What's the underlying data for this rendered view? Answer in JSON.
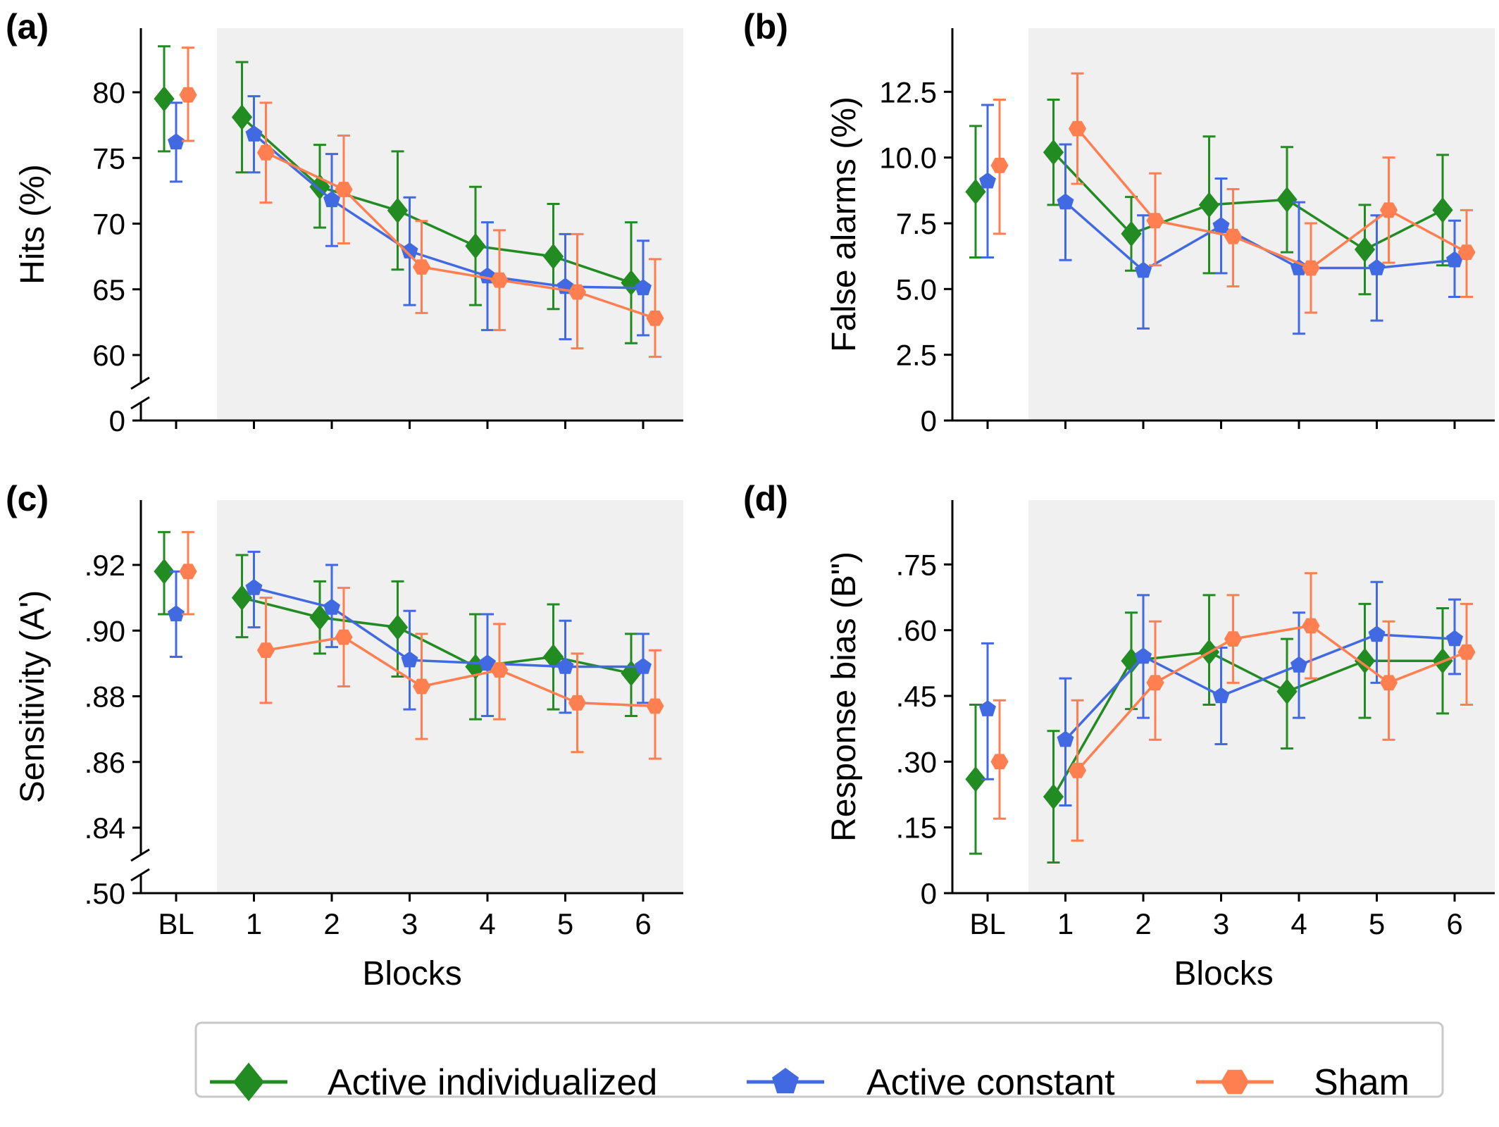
{
  "colors": {
    "active_individualized": "#228b22",
    "active_constant": "#4169e1",
    "sham": "#ff7f50",
    "shade": "#f0f0f0"
  },
  "legend": {
    "items": [
      {
        "label": "Active individualized",
        "marker": "diamond",
        "color": "#228b22"
      },
      {
        "label": "Active constant",
        "marker": "pentagon",
        "color": "#4169e1"
      },
      {
        "label": "Sham",
        "marker": "hexagon",
        "color": "#ff7f50"
      }
    ]
  },
  "chart_data": [
    {
      "type": "line",
      "panel": "(a)",
      "ylabel": "Hits (%)",
      "xlabel": "",
      "categories": [
        "BL",
        "1",
        "2",
        "3",
        "4",
        "5",
        "6"
      ],
      "yticks": [
        "0",
        "60",
        "65",
        "70",
        "75",
        "80"
      ],
      "shaded_region": "blocks 1-6",
      "series": [
        {
          "name": "Active individualized",
          "values": [
            79.5,
            78.1,
            72.8,
            71.0,
            68.3,
            67.5,
            65.5
          ],
          "err_low": [
            75.5,
            73.9,
            69.7,
            66.5,
            63.8,
            63.5,
            60.9
          ],
          "err_high": [
            83.5,
            82.3,
            76.0,
            75.5,
            72.8,
            71.5,
            70.1
          ]
        },
        {
          "name": "Active constant",
          "values": [
            76.2,
            76.8,
            71.8,
            67.9,
            66.0,
            65.2,
            65.1
          ],
          "err_low": [
            73.2,
            73.9,
            68.3,
            63.8,
            61.9,
            61.2,
            61.5
          ],
          "err_high": [
            79.2,
            79.7,
            75.3,
            72.0,
            70.1,
            69.2,
            68.7
          ]
        },
        {
          "name": "Sham",
          "values": [
            79.8,
            75.4,
            72.6,
            66.7,
            65.7,
            64.8,
            62.8
          ],
          "err_low": [
            76.3,
            71.6,
            68.5,
            63.2,
            61.9,
            60.5,
            58.3
          ],
          "err_high": [
            83.4,
            79.2,
            76.7,
            70.2,
            69.5,
            69.2,
            67.3
          ]
        }
      ]
    },
    {
      "type": "line",
      "panel": "(b)",
      "ylabel": "False alarms (%)",
      "xlabel": "",
      "categories": [
        "BL",
        "1",
        "2",
        "3",
        "4",
        "5",
        "6"
      ],
      "yticks": [
        "0",
        "2.5",
        "5.0",
        "7.5",
        "10.0",
        "12.5"
      ],
      "shaded_region": "blocks 1-6",
      "series": [
        {
          "name": "Active individualized",
          "values": [
            8.7,
            10.2,
            7.1,
            8.2,
            8.4,
            6.5,
            8.0
          ],
          "err_low": [
            6.2,
            8.2,
            5.7,
            5.6,
            6.4,
            4.8,
            5.9
          ],
          "err_high": [
            11.2,
            12.2,
            8.5,
            10.8,
            10.4,
            8.2,
            10.1
          ]
        },
        {
          "name": "Active constant",
          "values": [
            9.1,
            8.3,
            5.7,
            7.4,
            5.8,
            5.8,
            6.1
          ],
          "err_low": [
            6.2,
            6.1,
            3.5,
            5.6,
            3.3,
            3.8,
            4.7
          ],
          "err_high": [
            12.0,
            10.5,
            7.8,
            9.2,
            8.3,
            7.8,
            7.6
          ]
        },
        {
          "name": "Sham",
          "values": [
            9.7,
            11.1,
            7.6,
            7.0,
            5.8,
            8.0,
            6.4
          ],
          "err_low": [
            7.1,
            9.0,
            5.9,
            5.1,
            4.1,
            6.0,
            4.7
          ],
          "err_high": [
            12.2,
            13.2,
            9.4,
            8.8,
            7.5,
            10.0,
            8.0
          ]
        }
      ]
    },
    {
      "type": "line",
      "panel": "(c)",
      "ylabel": "Sensitivity (A')",
      "xlabel": "Blocks",
      "categories": [
        "BL",
        "1",
        "2",
        "3",
        "4",
        "5",
        "6"
      ],
      "yticks": [
        ".50",
        ".84",
        ".86",
        ".88",
        ".90",
        ".92"
      ],
      "shaded_region": "blocks 1-6",
      "series": [
        {
          "name": "Active individualized",
          "values": [
            0.918,
            0.91,
            0.904,
            0.901,
            0.889,
            0.892,
            0.887
          ],
          "err_low": [
            0.905,
            0.898,
            0.893,
            0.886,
            0.873,
            0.876,
            0.874
          ],
          "err_high": [
            0.93,
            0.923,
            0.915,
            0.915,
            0.905,
            0.908,
            0.899
          ]
        },
        {
          "name": "Active constant",
          "values": [
            0.905,
            0.913,
            0.907,
            0.891,
            0.89,
            0.889,
            0.889
          ],
          "err_low": [
            0.892,
            0.901,
            0.895,
            0.876,
            0.874,
            0.875,
            0.878
          ],
          "err_high": [
            0.918,
            0.924,
            0.92,
            0.906,
            0.905,
            0.903,
            0.899
          ]
        },
        {
          "name": "Sham",
          "values": [
            0.918,
            0.894,
            0.898,
            0.883,
            0.888,
            0.878,
            0.877
          ],
          "err_low": [
            0.905,
            0.878,
            0.883,
            0.867,
            0.873,
            0.863,
            0.861
          ],
          "err_high": [
            0.93,
            0.91,
            0.913,
            0.899,
            0.902,
            0.893,
            0.894
          ]
        }
      ]
    },
    {
      "type": "line",
      "panel": "(d)",
      "ylabel": "Response bias (B\")",
      "xlabel": "Blocks",
      "categories": [
        "BL",
        "1",
        "2",
        "3",
        "4",
        "5",
        "6"
      ],
      "yticks": [
        "0",
        ".15",
        ".30",
        ".45",
        ".60",
        ".75"
      ],
      "shaded_region": "blocks 1-6",
      "series": [
        {
          "name": "Active individualized",
          "values": [
            0.26,
            0.22,
            0.53,
            0.55,
            0.46,
            0.53,
            0.53
          ],
          "err_low": [
            0.09,
            0.07,
            0.42,
            0.43,
            0.33,
            0.4,
            0.41
          ],
          "err_high": [
            0.43,
            0.37,
            0.64,
            0.68,
            0.58,
            0.66,
            0.65
          ]
        },
        {
          "name": "Active constant",
          "values": [
            0.42,
            0.35,
            0.54,
            0.45,
            0.52,
            0.59,
            0.58
          ],
          "err_low": [
            0.26,
            0.2,
            0.4,
            0.34,
            0.4,
            0.48,
            0.5
          ],
          "err_high": [
            0.57,
            0.49,
            0.68,
            0.56,
            0.64,
            0.71,
            0.67
          ]
        },
        {
          "name": "Sham",
          "values": [
            0.3,
            0.28,
            0.48,
            0.58,
            0.61,
            0.48,
            0.55
          ],
          "err_low": [
            0.17,
            0.12,
            0.35,
            0.48,
            0.49,
            0.35,
            0.43
          ],
          "err_high": [
            0.44,
            0.44,
            0.62,
            0.68,
            0.73,
            0.62,
            0.66
          ]
        }
      ]
    }
  ]
}
